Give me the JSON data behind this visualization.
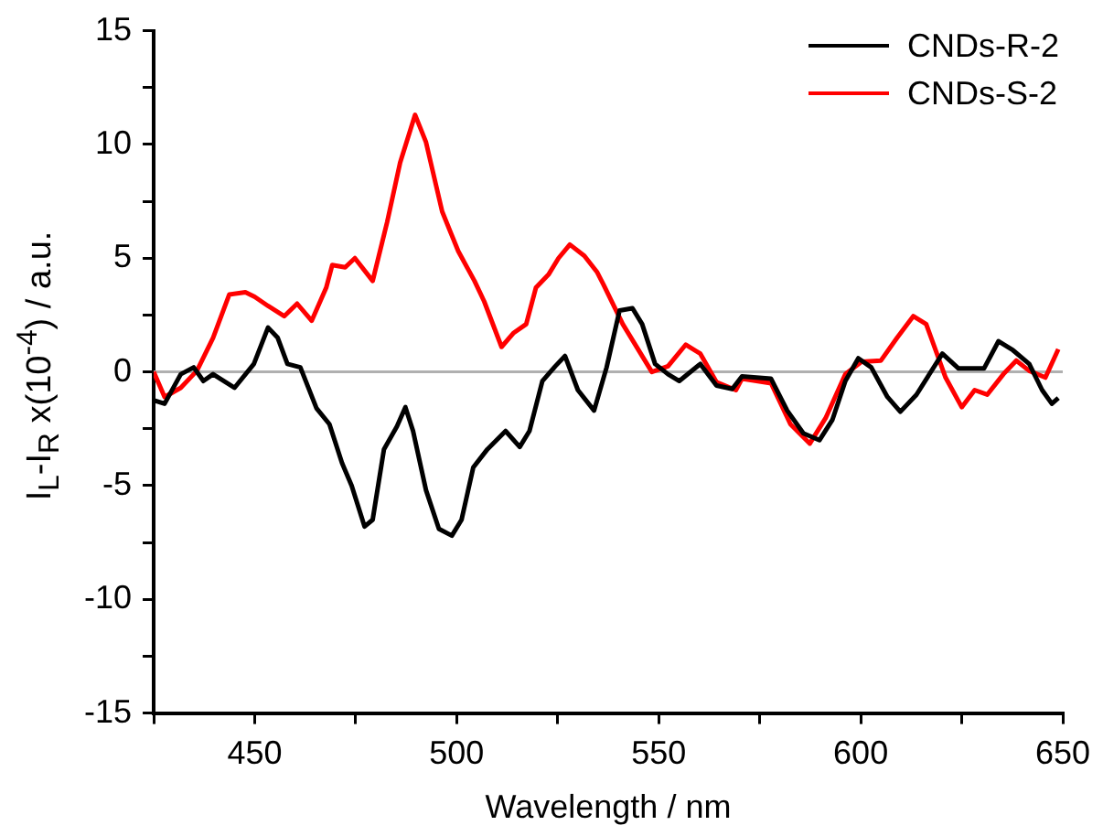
{
  "chart_data": {
    "type": "line",
    "xlabel": "Wavelength / nm",
    "ylabel": "I$_{L}$-I$_{R}$ x(10$^{-4}$) / a.u.",
    "xlim": [
      425,
      650
    ],
    "xticks": [
      {
        "value": 425,
        "label": null
      },
      450,
      {
        "value": 475,
        "label": null
      },
      500,
      {
        "value": 525,
        "label": null
      },
      550,
      {
        "value": 575,
        "label": null
      },
      600,
      {
        "value": 625,
        "label": null
      },
      650
    ],
    "ylim": [
      -15,
      15
    ],
    "yticks": [
      -15,
      {
        "value": -12.5,
        "label": null
      },
      -10,
      {
        "value": -7.5,
        "label": null
      },
      -5,
      {
        "value": -2.5,
        "label": null
      },
      0,
      {
        "value": 2.5,
        "label": null
      },
      5,
      {
        "value": 7.5,
        "label": null
      },
      10,
      {
        "value": 12.5,
        "label": null
      },
      15
    ],
    "legend": "top right",
    "grid": false,
    "marker": "none",
    "line_style": "solid",
    "ref_lines": [
      {
        "axis": "y",
        "value": 0,
        "color": "#b0b0b0"
      }
    ],
    "series": [
      {
        "name": "CNDs-R-2",
        "color": "#000000",
        "x": [
          425,
          427.7,
          431.7,
          434.9,
          437.3,
          439.7,
          445,
          449.8,
          453.3,
          455.7,
          458.1,
          461.3,
          465.3,
          468.5,
          471.6,
          474,
          477.2,
          479.2,
          482,
          485.2,
          487.3,
          489.2,
          492.4,
          495.6,
          498.8,
          501.2,
          504.1,
          507.6,
          512.1,
          515.6,
          518,
          521.2,
          524.4,
          526.8,
          530,
          534,
          537.1,
          540.3,
          543.5,
          545.9,
          549.1,
          552.3,
          555.1,
          560.3,
          564.3,
          568.2,
          570.6,
          577.8,
          581.8,
          585.8,
          589.8,
          593,
          596.2,
          599.4,
          602.6,
          606.6,
          609.8,
          613.8,
          620.2,
          624.2,
          630.5,
          634.1,
          637.7,
          641.7,
          644.9,
          647.3,
          648.9
        ],
        "values": [
          -1.25,
          -1.4,
          -0.1,
          0.2,
          -0.4,
          -0.1,
          -0.7,
          0.35,
          1.95,
          1.5,
          0.35,
          0.2,
          -1.6,
          -2.3,
          -4.0,
          -5.0,
          -6.8,
          -6.5,
          -3.4,
          -2.4,
          -1.55,
          -2.6,
          -5.2,
          -6.9,
          -7.2,
          -6.5,
          -4.2,
          -3.4,
          -2.6,
          -3.3,
          -2.6,
          -0.4,
          0.25,
          0.7,
          -0.8,
          -1.7,
          0.2,
          2.7,
          2.8,
          2.1,
          0.35,
          -0.1,
          -0.4,
          0.35,
          -0.6,
          -0.75,
          -0.2,
          -0.3,
          -1.7,
          -2.7,
          -3.0,
          -2.1,
          -0.4,
          0.6,
          0.2,
          -1.1,
          -1.75,
          -1.0,
          0.8,
          0.15,
          0.15,
          1.35,
          0.95,
          0.35,
          -0.8,
          -1.4,
          -1.15
        ]
      },
      {
        "name": "CNDs-S-2",
        "color": "#ff0000",
        "x": [
          425,
          427.7,
          431.7,
          435.7,
          439.7,
          443.7,
          447.7,
          450,
          453.3,
          457.3,
          460.5,
          464.1,
          467.7,
          469.2,
          472.4,
          474.8,
          479.2,
          482.8,
          486,
          489.7,
          492.4,
          496.4,
          500.4,
          504.4,
          506.8,
          511.1,
          514,
          517.2,
          519.6,
          522.8,
          525.2,
          528,
          531.6,
          534.7,
          536.3,
          541.1,
          548.3,
          552.3,
          556.7,
          560.3,
          564.3,
          569.1,
          570.6,
          577.8,
          582.6,
          587.4,
          591.4,
          596.2,
          600.2,
          605,
          609,
          613,
          616.2,
          621,
          625,
          628.2,
          631.3,
          635.3,
          638.5,
          641.7,
          645.7,
          648.9
        ],
        "values": [
          0,
          -1.1,
          -0.7,
          0.05,
          1.5,
          3.4,
          3.5,
          3.3,
          2.9,
          2.45,
          3.0,
          2.25,
          3.7,
          4.7,
          4.6,
          5.0,
          4.0,
          6.6,
          9.2,
          11.3,
          10.1,
          7.05,
          5.3,
          4.0,
          3.1,
          1.1,
          1.7,
          2.1,
          3.7,
          4.3,
          5.0,
          5.6,
          5.1,
          4.4,
          3.85,
          2.1,
          0,
          0.25,
          1.2,
          0.8,
          -0.45,
          -0.8,
          -0.3,
          -0.5,
          -2.3,
          -3.15,
          -2.0,
          -0.1,
          0.45,
          0.5,
          1.5,
          2.45,
          2.1,
          -0.25,
          -1.55,
          -0.8,
          -1.0,
          -0.1,
          0.5,
          0.05,
          -0.25,
          1.0
        ]
      }
    ]
  }
}
